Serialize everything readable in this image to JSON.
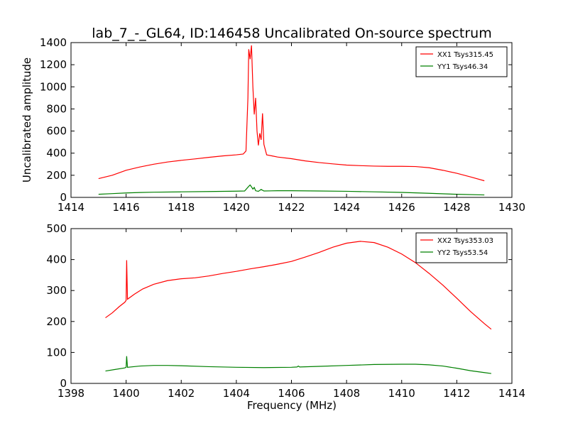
{
  "chart_data": [
    {
      "type": "line",
      "title": "lab_7_-_GL64, ID:146458 Uncalibrated On-source spectrum",
      "xlabel": "",
      "ylabel": "Uncalibrated amplitude",
      "xlim": [
        1414,
        1430
      ],
      "ylim": [
        0,
        1400
      ],
      "xticks": [
        1414,
        1416,
        1418,
        1420,
        1422,
        1424,
        1426,
        1428,
        1430
      ],
      "yticks": [
        0,
        200,
        400,
        600,
        800,
        1000,
        1200,
        1400
      ],
      "legend_position": "top-right",
      "grid": false,
      "series": [
        {
          "name": "XX1 Tsys315.45",
          "color": "#ff0000",
          "points": [
            [
              1415.0,
              170
            ],
            [
              1415.5,
              200
            ],
            [
              1416.0,
              245
            ],
            [
              1416.5,
              275
            ],
            [
              1417.0,
              300
            ],
            [
              1417.5,
              320
            ],
            [
              1418.0,
              335
            ],
            [
              1418.5,
              348
            ],
            [
              1419.0,
              362
            ],
            [
              1419.5,
              375
            ],
            [
              1420.0,
              385
            ],
            [
              1420.25,
              392
            ],
            [
              1420.35,
              420
            ],
            [
              1420.42,
              900
            ],
            [
              1420.45,
              1340
            ],
            [
              1420.5,
              1250
            ],
            [
              1420.55,
              1375
            ],
            [
              1420.6,
              1000
            ],
            [
              1420.65,
              750
            ],
            [
              1420.7,
              900
            ],
            [
              1420.75,
              600
            ],
            [
              1420.8,
              470
            ],
            [
              1420.85,
              580
            ],
            [
              1420.9,
              520
            ],
            [
              1420.95,
              760
            ],
            [
              1421.0,
              480
            ],
            [
              1421.1,
              385
            ],
            [
              1421.3,
              375
            ],
            [
              1421.5,
              365
            ],
            [
              1422.0,
              350
            ],
            [
              1422.5,
              330
            ],
            [
              1423.0,
              315
            ],
            [
              1423.5,
              303
            ],
            [
              1424.0,
              292
            ],
            [
              1424.5,
              287
            ],
            [
              1425.0,
              283
            ],
            [
              1425.5,
              281
            ],
            [
              1426.0,
              281
            ],
            [
              1426.5,
              279
            ],
            [
              1427.0,
              268
            ],
            [
              1427.5,
              245
            ],
            [
              1428.0,
              218
            ],
            [
              1428.5,
              185
            ],
            [
              1429.0,
              150
            ]
          ]
        },
        {
          "name": "YY1 Tsys46.34",
          "color": "#008000",
          "points": [
            [
              1415.0,
              28
            ],
            [
              1415.5,
              34
            ],
            [
              1416.0,
              40
            ],
            [
              1416.5,
              44
            ],
            [
              1417.0,
              47
            ],
            [
              1418.0,
              50
            ],
            [
              1419.0,
              53
            ],
            [
              1420.0,
              56
            ],
            [
              1420.3,
              58
            ],
            [
              1420.45,
              100
            ],
            [
              1420.5,
              112
            ],
            [
              1420.55,
              95
            ],
            [
              1420.6,
              75
            ],
            [
              1420.65,
              90
            ],
            [
              1420.7,
              60
            ],
            [
              1420.8,
              55
            ],
            [
              1420.9,
              72
            ],
            [
              1421.0,
              58
            ],
            [
              1421.5,
              60
            ],
            [
              1422.0,
              60
            ],
            [
              1423.0,
              58
            ],
            [
              1424.0,
              55
            ],
            [
              1425.0,
              50
            ],
            [
              1426.0,
              45
            ],
            [
              1427.0,
              37
            ],
            [
              1428.0,
              28
            ],
            [
              1429.0,
              22
            ]
          ]
        }
      ]
    },
    {
      "type": "line",
      "title": "",
      "xlabel": "Frequency (MHz)",
      "ylabel": "",
      "xlim": [
        1398,
        1414
      ],
      "ylim": [
        0,
        500
      ],
      "xticks": [
        1398,
        1400,
        1402,
        1404,
        1406,
        1408,
        1410,
        1412,
        1414
      ],
      "yticks": [
        0,
        100,
        200,
        300,
        400,
        500
      ],
      "legend_position": "top-right",
      "grid": false,
      "series": [
        {
          "name": "XX2 Tsys353.03",
          "color": "#ff0000",
          "points": [
            [
              1399.25,
              212
            ],
            [
              1399.5,
              228
            ],
            [
              1399.75,
              248
            ],
            [
              1399.95,
              262
            ],
            [
              1400.0,
              268
            ],
            [
              1400.02,
              398
            ],
            [
              1400.05,
              272
            ],
            [
              1400.3,
              288
            ],
            [
              1400.6,
              305
            ],
            [
              1401.0,
              320
            ],
            [
              1401.5,
              332
            ],
            [
              1402.0,
              338
            ],
            [
              1402.5,
              341
            ],
            [
              1403.0,
              347
            ],
            [
              1403.5,
              355
            ],
            [
              1404.0,
              362
            ],
            [
              1404.5,
              370
            ],
            [
              1405.0,
              377
            ],
            [
              1405.5,
              385
            ],
            [
              1406.0,
              394
            ],
            [
              1406.5,
              408
            ],
            [
              1407.0,
              423
            ],
            [
              1407.5,
              440
            ],
            [
              1408.0,
              453
            ],
            [
              1408.5,
              459
            ],
            [
              1409.0,
              455
            ],
            [
              1409.5,
              440
            ],
            [
              1410.0,
              418
            ],
            [
              1410.5,
              390
            ],
            [
              1411.0,
              355
            ],
            [
              1411.5,
              317
            ],
            [
              1412.0,
              275
            ],
            [
              1412.5,
              232
            ],
            [
              1413.0,
              193
            ],
            [
              1413.25,
              175
            ]
          ]
        },
        {
          "name": "YY2 Tsys53.54",
          "color": "#008000",
          "points": [
            [
              1399.25,
              40
            ],
            [
              1399.6,
              45
            ],
            [
              1399.95,
              50
            ],
            [
              1400.0,
              52
            ],
            [
              1400.02,
              88
            ],
            [
              1400.05,
              52
            ],
            [
              1400.5,
              56
            ],
            [
              1401.0,
              58
            ],
            [
              1401.5,
              58
            ],
            [
              1402.0,
              57
            ],
            [
              1403.0,
              54
            ],
            [
              1404.0,
              52
            ],
            [
              1405.0,
              51
            ],
            [
              1406.0,
              52
            ],
            [
              1406.2,
              53
            ],
            [
              1406.25,
              56
            ],
            [
              1406.3,
              53
            ],
            [
              1407.0,
              55
            ],
            [
              1408.0,
              58
            ],
            [
              1409.0,
              61
            ],
            [
              1410.0,
              62
            ],
            [
              1410.5,
              62
            ],
            [
              1411.0,
              60
            ],
            [
              1411.5,
              56
            ],
            [
              1412.0,
              49
            ],
            [
              1412.5,
              41
            ],
            [
              1413.0,
              35
            ],
            [
              1413.25,
              32
            ]
          ]
        }
      ]
    }
  ]
}
